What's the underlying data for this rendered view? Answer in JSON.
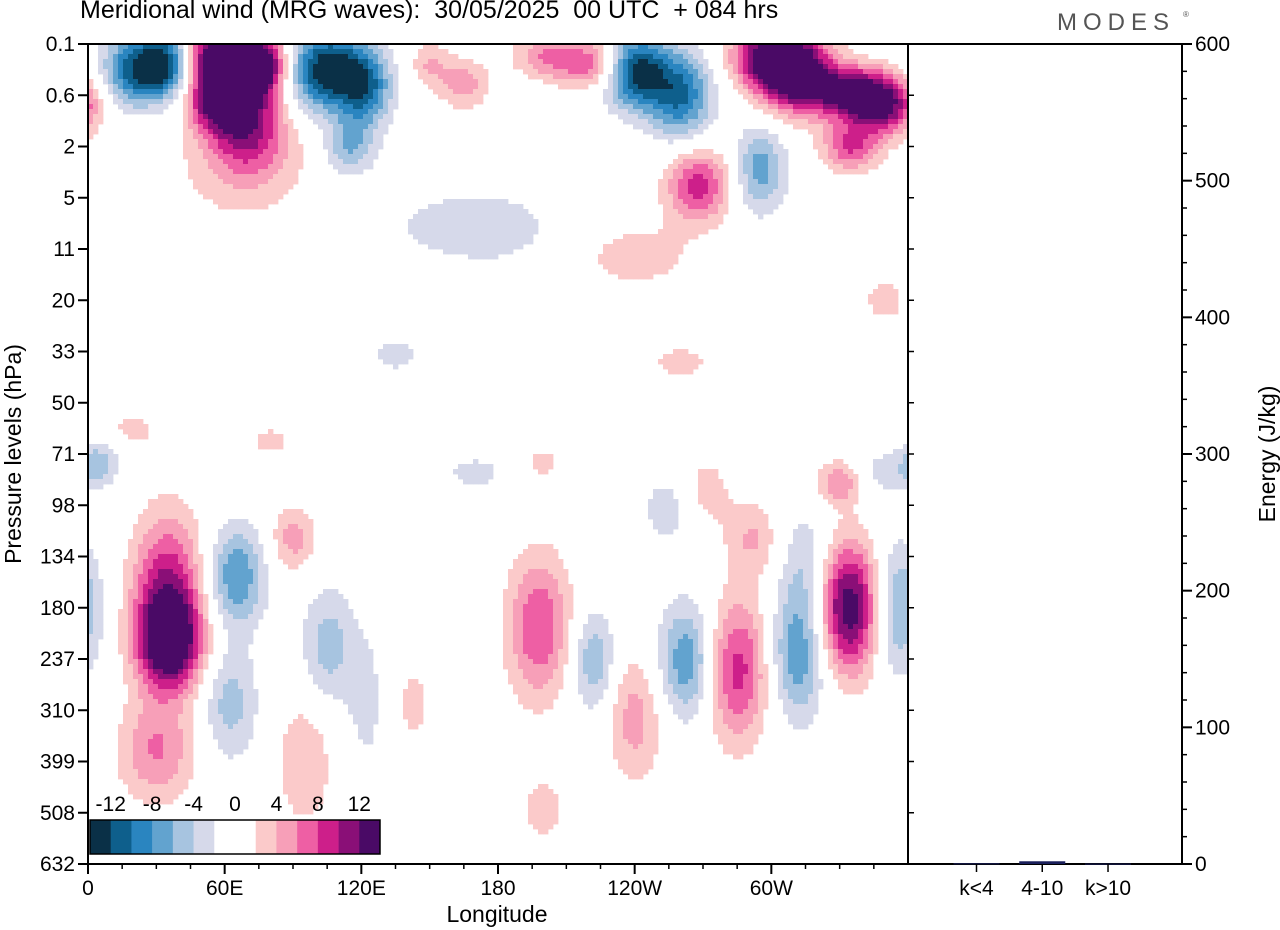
{
  "header": {
    "title": "Meridional wind (MRG waves):  30/05/2025  00 UTC  + 084 hrs",
    "brand": "MODES",
    "brand_mark": "®"
  },
  "chart_data": [
    {
      "type": "heatmap",
      "title": "Meridional wind (MRG waves):  30/05/2025  00 UTC  + 084 hrs",
      "xlabel": "Longitude",
      "ylabel": "Pressure levels (hPa)",
      "x_ticks": [
        "0",
        "60E",
        "120E",
        "180",
        "120W",
        "60W"
      ],
      "y_ticks": [
        "0.1",
        "0.6",
        "2",
        "5",
        "11",
        "20",
        "33",
        "50",
        "71",
        "98",
        "134",
        "180",
        "237",
        "310",
        "399",
        "508",
        "632"
      ],
      "colorbar": {
        "levels": [
          -14,
          -12,
          -10,
          -8,
          -6,
          -4,
          -2,
          0,
          2,
          4,
          6,
          8,
          10,
          12,
          14
        ],
        "labels": [
          "-12",
          "-8",
          "-4",
          "0",
          "4",
          "8",
          "12"
        ],
        "colors": [
          "#0a3047",
          "#0e5f8c",
          "#2a85c0",
          "#62a3cf",
          "#a7c4e0",
          "#d6d9ea",
          "#ffffff",
          "#ffffff",
          "#fbcaca",
          "#f79fb8",
          "#ee5fa4",
          "#cd1f8a",
          "#8a0f77",
          "#4a0a66"
        ]
      },
      "features": [
        {
          "lon": 20,
          "p": 0.25,
          "v": -10,
          "w": 10,
          "h": 0.5
        },
        {
          "lon": 35,
          "p": 0.2,
          "v": -12,
          "w": 9,
          "h": 0.45
        },
        {
          "lon": 50,
          "p": 0.12,
          "v": 6,
          "w": 8,
          "h": 0.4
        },
        {
          "lon": 62,
          "p": 0.25,
          "v": 14,
          "w": 12,
          "h": 0.5
        },
        {
          "lon": 75,
          "p": 0.2,
          "v": 13,
          "w": 9,
          "h": 0.4
        },
        {
          "lon": 58,
          "p": 0.7,
          "v": 10,
          "w": 9,
          "h": 0.4
        },
        {
          "lon": 105,
          "p": 0.25,
          "v": -14,
          "w": 13,
          "h": 0.55
        },
        {
          "lon": 122,
          "p": 0.5,
          "v": -8,
          "w": 8,
          "h": 0.5
        },
        {
          "lon": 115,
          "p": 2,
          "v": -6,
          "w": 8,
          "h": 0.4
        },
        {
          "lon": 70,
          "p": 1.3,
          "v": 9,
          "w": 12,
          "h": 0.6
        },
        {
          "lon": 68,
          "p": 3,
          "v": 3,
          "w": 22,
          "h": 0.8
        },
        {
          "lon": 150,
          "p": 0.2,
          "v": 4,
          "w": 6,
          "h": 0.3
        },
        {
          "lon": 165,
          "p": 0.4,
          "v": 5,
          "w": 8,
          "h": 0.35
        },
        {
          "lon": 200,
          "p": 0.15,
          "v": 5,
          "w": 10,
          "h": 0.3
        },
        {
          "lon": 222,
          "p": 0.2,
          "v": 8,
          "w": 12,
          "h": 0.35
        },
        {
          "lon": 240,
          "p": 0.25,
          "v": -14,
          "w": 10,
          "h": 0.5
        },
        {
          "lon": 260,
          "p": 0.6,
          "v": -10,
          "w": 10,
          "h": 0.6
        },
        {
          "lon": 300,
          "p": 0.15,
          "v": 12,
          "w": 12,
          "h": 0.4
        },
        {
          "lon": 310,
          "p": 0.3,
          "v": 14,
          "w": 12,
          "h": 0.5
        },
        {
          "lon": 338,
          "p": 0.55,
          "v": 14,
          "w": 14,
          "h": 0.35
        },
        {
          "lon": 350,
          "p": 0.9,
          "v": 8,
          "w": 10,
          "h": 0.35
        },
        {
          "lon": 268,
          "p": 4,
          "v": 9,
          "w": 10,
          "h": 0.5
        },
        {
          "lon": 295,
          "p": 3,
          "v": -7,
          "w": 8,
          "h": 0.6
        },
        {
          "lon": 335,
          "p": 2,
          "v": 8,
          "w": 9,
          "h": 0.35
        },
        {
          "lon": 170,
          "p": 8,
          "v": -4,
          "w": 25,
          "h": 0.5
        },
        {
          "lon": 240,
          "p": 12,
          "v": 3,
          "w": 20,
          "h": 0.5
        },
        {
          "lon": 150,
          "p": 16,
          "v": 2,
          "w": 10,
          "h": 0.3
        },
        {
          "lon": 350,
          "p": 20,
          "v": 2.5,
          "w": 10,
          "h": 0.45
        },
        {
          "lon": 260,
          "p": 36,
          "v": 3,
          "w": 10,
          "h": 0.25
        },
        {
          "lon": 135,
          "p": 34,
          "v": -3,
          "w": 8,
          "h": 0.25
        },
        {
          "lon": 20,
          "p": 60,
          "v": 2.5,
          "w": 10,
          "h": 0.3
        },
        {
          "lon": 5,
          "p": 75,
          "v": -5,
          "w": 6,
          "h": 0.3
        },
        {
          "lon": 80,
          "p": 65,
          "v": 2.5,
          "w": 8,
          "h": 0.3
        },
        {
          "lon": 200,
          "p": 75,
          "v": 2.5,
          "w": 7,
          "h": 0.3
        },
        {
          "lon": 170,
          "p": 80,
          "v": -3,
          "w": 10,
          "h": 0.25
        },
        {
          "lon": 350,
          "p": 80,
          "v": -3,
          "w": 10,
          "h": 0.35
        },
        {
          "lon": 35,
          "p": 170,
          "v": 11,
          "w": 11,
          "h": 1.1
        },
        {
          "lon": 36,
          "p": 220,
          "v": 11,
          "w": 10,
          "h": 0.6
        },
        {
          "lon": 30,
          "p": 380,
          "v": 6,
          "w": 12,
          "h": 0.7
        },
        {
          "lon": 65,
          "p": 150,
          "v": -8,
          "w": 9,
          "h": 0.7
        },
        {
          "lon": 62,
          "p": 300,
          "v": -5,
          "w": 9,
          "h": 0.8
        },
        {
          "lon": 90,
          "p": 120,
          "v": 5,
          "w": 7,
          "h": 0.45
        },
        {
          "lon": 95,
          "p": 400,
          "v": 4,
          "w": 9,
          "h": 0.9
        },
        {
          "lon": 105,
          "p": 220,
          "v": -5,
          "w": 8,
          "h": 0.8
        },
        {
          "lon": 125,
          "p": 300,
          "v": -3,
          "w": 9,
          "h": 1.2
        },
        {
          "lon": 140,
          "p": 300,
          "v": 3,
          "w": 9,
          "h": 0.9
        },
        {
          "lon": 198,
          "p": 200,
          "v": 8,
          "w": 10,
          "h": 1.0
        },
        {
          "lon": 200,
          "p": 500,
          "v": 3,
          "w": 8,
          "h": 0.5
        },
        {
          "lon": 222,
          "p": 240,
          "v": -6,
          "w": 7,
          "h": 0.7
        },
        {
          "lon": 240,
          "p": 320,
          "v": 5,
          "w": 9,
          "h": 0.9
        },
        {
          "lon": 263,
          "p": 240,
          "v": -8,
          "w": 9,
          "h": 0.8
        },
        {
          "lon": 285,
          "p": 250,
          "v": 9,
          "w": 10,
          "h": 1.0
        },
        {
          "lon": 312,
          "p": 230,
          "v": -8,
          "w": 9,
          "h": 0.9
        },
        {
          "lon": 334,
          "p": 180,
          "v": 14,
          "w": 10,
          "h": 0.9
        },
        {
          "lon": 355,
          "p": 180,
          "v": -7,
          "w": 8,
          "h": 0.9
        },
        {
          "lon": 330,
          "p": 85,
          "v": 6,
          "w": 7,
          "h": 0.3
        },
        {
          "lon": 316,
          "p": 140,
          "v": -4,
          "w": 8,
          "h": 0.8
        },
        {
          "lon": 270,
          "p": 90,
          "v": 3,
          "w": 10,
          "h": 0.6
        },
        {
          "lon": 292,
          "p": 120,
          "v": 4,
          "w": 8,
          "h": 0.5
        },
        {
          "lon": 255,
          "p": 100,
          "v": -4,
          "w": 8,
          "h": 0.5
        }
      ]
    },
    {
      "type": "bar",
      "categories": [
        "k<4",
        "4-10",
        "k>10"
      ],
      "values": [
        0.5,
        2.0,
        0.3
      ],
      "ylabel": "Energy (J/kg)",
      "ylim": [
        0,
        600
      ],
      "y_ticks": [
        0,
        100,
        200,
        300,
        400,
        500,
        600
      ],
      "bar_color": "#1a1f5a"
    }
  ]
}
